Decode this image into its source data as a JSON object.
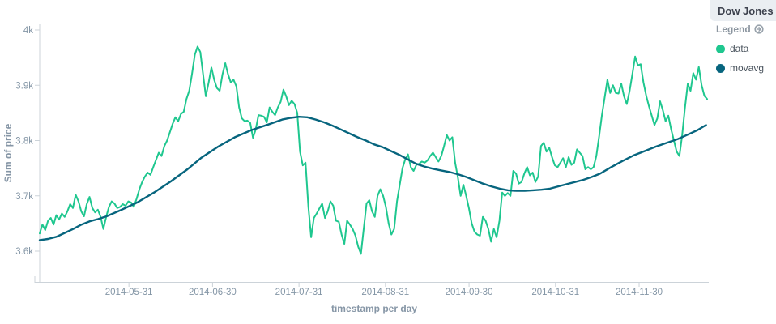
{
  "legend_panel": {
    "title": "Dow Jones",
    "legend_label": "Legend",
    "items": [
      {
        "label": "data",
        "color": "#1fc78f"
      },
      {
        "label": "movavg",
        "color": "#07657e"
      }
    ]
  },
  "chart_data": {
    "type": "line",
    "title": "Dow Jones",
    "xlabel": "timestamp per day",
    "ylabel": "Sum of price",
    "grid": false,
    "legend_position": "right",
    "x_domain": [
      "2014-04-29",
      "2014-12-24"
    ],
    "x_total_days": 239,
    "ylim": [
      3546,
      4010
    ],
    "y_ticks": [
      {
        "label": "4k",
        "value": 4000
      },
      {
        "label": "3.9k",
        "value": 3900
      },
      {
        "label": "3.8k",
        "value": 3800
      },
      {
        "label": "3.7k",
        "value": 3700
      },
      {
        "label": "3.6k",
        "value": 3600
      }
    ],
    "x_ticks": [
      {
        "label": "2014-05-31",
        "day": 32
      },
      {
        "label": "2014-06-30",
        "day": 62
      },
      {
        "label": "2014-07-31",
        "day": 93
      },
      {
        "label": "2014-08-31",
        "day": 124
      },
      {
        "label": "2014-09-30",
        "day": 154
      },
      {
        "label": "2014-10-31",
        "day": 185
      },
      {
        "label": "2014-11-30",
        "day": 215
      }
    ],
    "series": [
      {
        "name": "data",
        "color": "#1fc78f",
        "stroke_width": 2,
        "cadence_days": 1,
        "values": [
          3632,
          3648,
          3638,
          3655,
          3660,
          3648,
          3665,
          3657,
          3668,
          3662,
          3672,
          3685,
          3678,
          3702,
          3690,
          3672,
          3663,
          3685,
          3698,
          3678,
          3670,
          3675,
          3662,
          3640,
          3662,
          3680,
          3690,
          3686,
          3678,
          3680,
          3685,
          3682,
          3690,
          3688,
          3680,
          3695,
          3712,
          3725,
          3735,
          3742,
          3738,
          3752,
          3765,
          3778,
          3772,
          3790,
          3800,
          3815,
          3830,
          3842,
          3835,
          3848,
          3852,
          3875,
          3890,
          3920,
          3955,
          3970,
          3960,
          3920,
          3880,
          3905,
          3932,
          3910,
          3895,
          3890,
          3920,
          3940,
          3920,
          3905,
          3910,
          3898,
          3860,
          3840,
          3835,
          3836,
          3832,
          3805,
          3820,
          3846,
          3845,
          3843,
          3833,
          3860,
          3852,
          3846,
          3860,
          3870,
          3892,
          3880,
          3864,
          3872,
          3866,
          3850,
          3780,
          3755,
          3760,
          3680,
          3625,
          3660,
          3668,
          3677,
          3686,
          3660,
          3672,
          3690,
          3682,
          3655,
          3653,
          3630,
          3613,
          3655,
          3648,
          3640,
          3628,
          3608,
          3595,
          3640,
          3686,
          3692,
          3672,
          3662,
          3700,
          3712,
          3700,
          3680,
          3650,
          3630,
          3640,
          3690,
          3720,
          3750,
          3766,
          3775,
          3752,
          3745,
          3756,
          3758,
          3762,
          3760,
          3764,
          3772,
          3778,
          3770,
          3762,
          3772,
          3790,
          3810,
          3800,
          3806,
          3760,
          3733,
          3700,
          3720,
          3700,
          3677,
          3650,
          3635,
          3630,
          3628,
          3662,
          3655,
          3640,
          3617,
          3640,
          3625,
          3655,
          3706,
          3700,
          3705,
          3700,
          3745,
          3740,
          3722,
          3725,
          3740,
          3752,
          3737,
          3742,
          3725,
          3735,
          3790,
          3796,
          3780,
          3787,
          3770,
          3755,
          3752,
          3760,
          3768,
          3752,
          3770,
          3756,
          3760,
          3784,
          3778,
          3772,
          3748,
          3752,
          3748,
          3752,
          3772,
          3808,
          3846,
          3878,
          3910,
          3886,
          3900,
          3886,
          3885,
          3903,
          3880,
          3866,
          3890,
          3920,
          3952,
          3936,
          3938,
          3905,
          3881,
          3862,
          3845,
          3828,
          3840,
          3871,
          3855,
          3835,
          3845,
          3820,
          3800,
          3780,
          3772,
          3810,
          3859,
          3903,
          3890,
          3922,
          3910,
          3933,
          3900,
          3881,
          3875
        ]
      },
      {
        "name": "movavg",
        "color": "#07657e",
        "stroke_width": 2.4,
        "points": [
          [
            0,
            3620
          ],
          [
            3,
            3622
          ],
          [
            6,
            3626
          ],
          [
            9,
            3633
          ],
          [
            12,
            3640
          ],
          [
            15,
            3648
          ],
          [
            18,
            3654
          ],
          [
            21,
            3658
          ],
          [
            24,
            3663
          ],
          [
            29,
            3674
          ],
          [
            35,
            3688
          ],
          [
            41,
            3706
          ],
          [
            47,
            3726
          ],
          [
            53,
            3748
          ],
          [
            58,
            3769
          ],
          [
            64,
            3789
          ],
          [
            70,
            3806
          ],
          [
            76,
            3819
          ],
          [
            82,
            3829
          ],
          [
            87,
            3838
          ],
          [
            90,
            3841
          ],
          [
            93,
            3843
          ],
          [
            96,
            3842
          ],
          [
            99,
            3838
          ],
          [
            102,
            3833
          ],
          [
            105,
            3827
          ],
          [
            108,
            3820
          ],
          [
            111,
            3813
          ],
          [
            114,
            3806
          ],
          [
            117,
            3800
          ],
          [
            120,
            3793
          ],
          [
            123,
            3788
          ],
          [
            126,
            3781
          ],
          [
            129,
            3774
          ],
          [
            132,
            3766
          ],
          [
            135,
            3758
          ],
          [
            138,
            3753
          ],
          [
            141,
            3749
          ],
          [
            144,
            3746
          ],
          [
            147,
            3743
          ],
          [
            150,
            3739
          ],
          [
            153,
            3734
          ],
          [
            156,
            3728
          ],
          [
            159,
            3722
          ],
          [
            162,
            3717
          ],
          [
            165,
            3713
          ],
          [
            168,
            3710
          ],
          [
            171,
            3709
          ],
          [
            174,
            3709
          ],
          [
            177,
            3710
          ],
          [
            180,
            3711
          ],
          [
            183,
            3713
          ],
          [
            186,
            3717
          ],
          [
            189,
            3721
          ],
          [
            192,
            3725
          ],
          [
            195,
            3729
          ],
          [
            198,
            3734
          ],
          [
            201,
            3740
          ],
          [
            205,
            3752
          ],
          [
            209,
            3763
          ],
          [
            213,
            3773
          ],
          [
            217,
            3781
          ],
          [
            221,
            3789
          ],
          [
            225,
            3796
          ],
          [
            229,
            3803
          ],
          [
            233,
            3812
          ],
          [
            236,
            3819
          ],
          [
            239,
            3828
          ]
        ]
      }
    ]
  }
}
